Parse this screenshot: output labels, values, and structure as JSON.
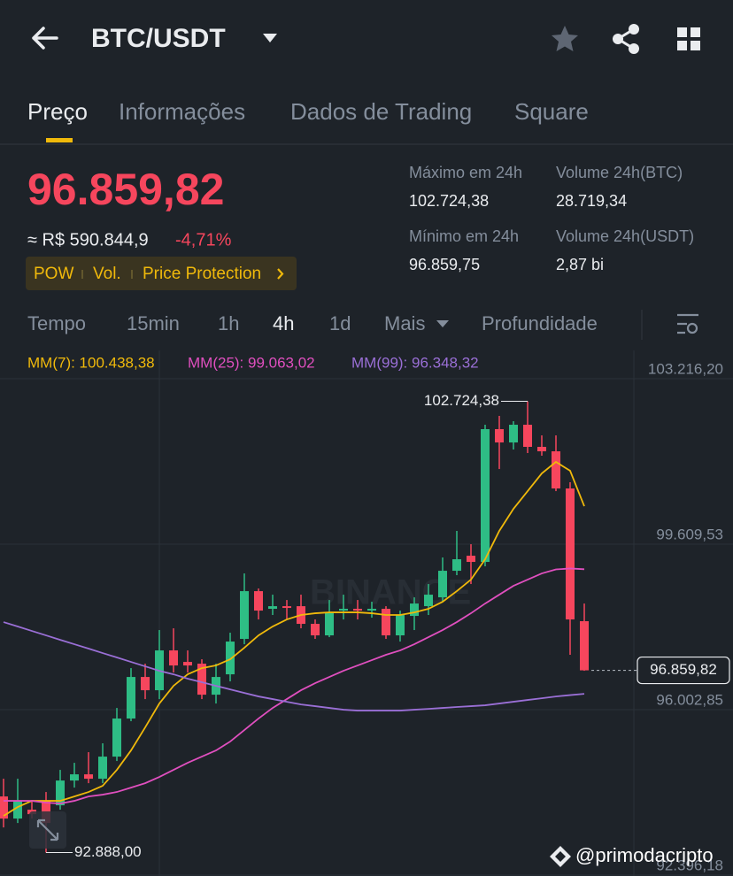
{
  "header": {
    "pair": "BTC/USDT"
  },
  "tabs": [
    "Preço",
    "Informações",
    "Dados de Trading",
    "Square"
  ],
  "price": {
    "last": "96.859,82",
    "fiat": "≈ R$ 590.844,9",
    "change": "-4,71%"
  },
  "badges": [
    "POW",
    "Vol.",
    "Price Protection"
  ],
  "stats": [
    {
      "label": "Máximo em 24h",
      "value": "102.724,38"
    },
    {
      "label": "Volume 24h(BTC)",
      "value": "28.719,34"
    },
    {
      "label": "Mínimo em 24h",
      "value": "96.859,75"
    },
    {
      "label": "Volume 24h(USDT)",
      "value": "2,87 bi"
    }
  ],
  "intervals": [
    "Tempo",
    "15min",
    "1h",
    "4h",
    "1d",
    "Mais",
    "Profundidade"
  ],
  "logo_watermark": "BINANCE",
  "credit": "@primodacripto",
  "chart_data": {
    "type": "candlestick",
    "up_color": "#2ebd85",
    "down_color": "#f6465d",
    "open": [
      94111,
      93629,
      93822,
      94015,
      93918,
      94458,
      94593,
      94497,
      94979,
      95809,
      96715,
      96426,
      97294,
      97043,
      97005,
      96329,
      96773,
      97545,
      98586,
      98201,
      98258,
      98258,
      97873,
      97622,
      98162,
      98201,
      98162,
      98201,
      97622,
      98046,
      98258,
      98451,
      99030,
      99358,
      99223,
      102117,
      101827,
      102213,
      101731,
      101634,
      100824,
      97931
    ],
    "high": [
      94497,
      94497,
      94015,
      94208,
      94690,
      94844,
      95076,
      95269,
      96040,
      96908,
      97005,
      97738,
      97776,
      97294,
      97101,
      97005,
      97680,
      98972,
      98644,
      98509,
      98393,
      98509,
      97969,
      98393,
      98509,
      98393,
      98355,
      98258,
      98162,
      98451,
      98741,
      99320,
      99899,
      99609,
      102213,
      102406,
      102290,
      102724.38,
      101981,
      101981,
      100959,
      98316
    ],
    "low": [
      93436,
      93532,
      93629,
      92888.0,
      93822,
      94304,
      94400,
      94400,
      94883,
      95751,
      96233,
      96233,
      96812,
      96812,
      96233,
      96137,
      96619,
      97429,
      97969,
      98066,
      97969,
      97776,
      97545,
      97583,
      97969,
      97969,
      98008,
      97545,
      97487,
      97738,
      98066,
      98355,
      98934,
      98741,
      99127,
      101248,
      101673,
      101596,
      101538,
      100766,
      97198,
      96850
    ],
    "close": [
      93629,
      94015,
      93725,
      93532,
      94458,
      94593,
      94497,
      94979,
      95809,
      96715,
      96426,
      97294,
      96966,
      96966,
      96329,
      96715,
      97487,
      98586,
      98162,
      98258,
      98220,
      97873,
      97622,
      98123,
      98201,
      98162,
      98201,
      97622,
      98066,
      98316,
      98509,
      99030,
      99281,
      99223,
      102117,
      101827,
      102213,
      101731,
      101634,
      100824,
      97969,
      96859.82
    ],
    "series": [
      {
        "name": "MM(7): 100.438,38",
        "color": "#f0b90b",
        "values": [
          93687,
          93880,
          94015,
          94015,
          94015,
          94111,
          94208,
          94343,
          94690,
          95114,
          95616,
          96137,
          96522,
          96773,
          96908,
          96966,
          97101,
          97352,
          97622,
          97815,
          97969,
          98066,
          98104,
          98123,
          98123,
          98123,
          98104,
          98066,
          98066,
          98123,
          98201,
          98355,
          98586,
          98837,
          99281,
          99899,
          100380,
          100766,
          101152,
          101403,
          101210,
          100438.38
        ]
      },
      {
        "name": "MM(25): 99.063,02",
        "color": "#e04fbf",
        "values": [
          94015,
          94015,
          94015,
          93976,
          93957,
          94015,
          94111,
          94150,
          94208,
          94304,
          94400,
          94535,
          94690,
          94844,
          94979,
          95114,
          95307,
          95558,
          95809,
          96040,
          96233,
          96426,
          96580,
          96715,
          96850,
          96966,
          97082,
          97198,
          97294,
          97429,
          97583,
          97738,
          97911,
          98104,
          98316,
          98509,
          98702,
          98837,
          98972,
          99060,
          99080,
          99063.02
        ]
      },
      {
        "name": "MM(99): 96.348,32",
        "color": "#9a6fd6",
        "values": [
          97911,
          97815,
          97718,
          97622,
          97525,
          97429,
          97333,
          97236,
          97140,
          97043,
          96947,
          96850,
          96773,
          96677,
          96600,
          96522,
          96445,
          96368,
          96291,
          96233,
          96175,
          96117,
          96079,
          96040,
          96002,
          95982,
          95982,
          95982,
          95982,
          96002,
          96020,
          96040,
          96060,
          96079,
          96098,
          96137,
          96175,
          96214,
          96252,
          96290,
          96320,
          96348.32
        ]
      }
    ],
    "ylim": [
      92396.18,
      103216.2
    ],
    "yticks": [
      {
        "value": 103216.2,
        "label": "103.216,20"
      },
      {
        "value": 99609.53,
        "label": "99.609,53"
      },
      {
        "value": 96002.85,
        "label": "96.002,85"
      },
      {
        "value": 92396.18,
        "label": "92.396,18"
      }
    ],
    "grid": true,
    "annotations": [
      {
        "value": 102724.38,
        "label": "102.724,38"
      },
      {
        "value": 92888.0,
        "label": "92.888,00"
      }
    ]
  }
}
